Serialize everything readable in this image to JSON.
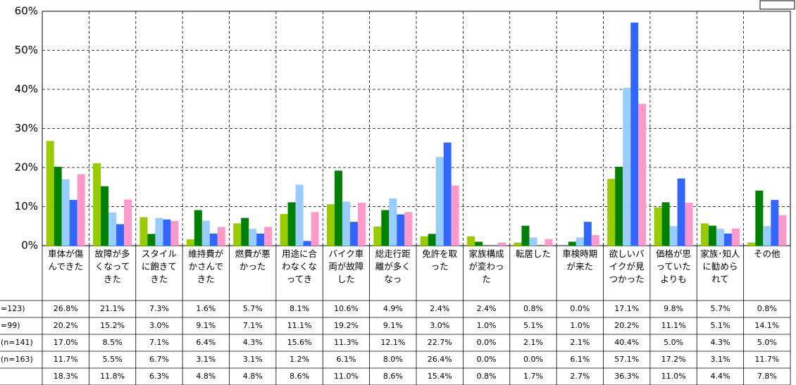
{
  "chart_data": {
    "type": "bar",
    "categories": [
      "車体が傷んできた",
      "故障が多くなってきた",
      "スタイルに飽きてきた",
      "維持費がかさんできた",
      "燃費が悪かった",
      "用途に合わなくなってき",
      "バイク車両が故障した",
      "総走行距離が多くなっ",
      "免許を取った",
      "家族構成が変わった",
      "転居した",
      "車検時期が来た",
      "欲しいバイクが見つかった",
      "価格が思っていたよりも",
      "家族･知人に勧められて",
      "その他"
    ],
    "ylim": [
      0,
      60
    ],
    "yticks": [
      {
        "value": 0,
        "label": "0%"
      },
      {
        "value": 10,
        "label": "10%"
      },
      {
        "value": 20,
        "label": "20%"
      },
      {
        "value": 30,
        "label": "30%"
      },
      {
        "value": 40,
        "label": "40%"
      },
      {
        "value": 50,
        "label": "50%"
      },
      {
        "value": 60,
        "label": "60%"
      }
    ],
    "grid": true,
    "series": [
      {
        "name": "=123)",
        "color": "#99cc00",
        "values": [
          26.8,
          21.1,
          7.3,
          1.6,
          5.7,
          8.1,
          10.6,
          4.9,
          2.4,
          2.4,
          0.8,
          0.0,
          17.1,
          9.8,
          5.7,
          0.8
        ],
        "value_labels": [
          "26.8%",
          "21.1%",
          "7.3%",
          "1.6%",
          "5.7%",
          "8.1%",
          "10.6%",
          "4.9%",
          "2.4%",
          "2.4%",
          "0.8%",
          "0.0%",
          "17.1%",
          "9.8%",
          "5.7%",
          "0.8%"
        ]
      },
      {
        "name": "=99)",
        "color": "#008000",
        "values": [
          20.2,
          15.2,
          3.0,
          9.1,
          7.1,
          11.1,
          19.2,
          9.1,
          3.0,
          1.0,
          5.1,
          1.0,
          20.2,
          11.1,
          5.1,
          14.1
        ],
        "value_labels": [
          "20.2%",
          "15.2%",
          "3.0%",
          "9.1%",
          "7.1%",
          "11.1%",
          "19.2%",
          "9.1%",
          "3.0%",
          "1.0%",
          "5.1%",
          "1.0%",
          "20.2%",
          "11.1%",
          "5.1%",
          "14.1%"
        ]
      },
      {
        "name": "(n=141)",
        "color": "#99ccff",
        "values": [
          17.0,
          8.5,
          7.1,
          6.4,
          4.3,
          15.6,
          11.3,
          12.1,
          22.7,
          0.0,
          2.1,
          2.1,
          40.4,
          5.0,
          4.3,
          5.0
        ],
        "value_labels": [
          "17.0%",
          "8.5%",
          "7.1%",
          "6.4%",
          "4.3%",
          "15.6%",
          "11.3%",
          "12.1%",
          "22.7%",
          "0.0%",
          "2.1%",
          "2.1%",
          "40.4%",
          "5.0%",
          "4.3%",
          "5.0%"
        ]
      },
      {
        "name": "(n=163)",
        "color": "#3366ff",
        "values": [
          11.7,
          5.5,
          6.7,
          3.1,
          3.1,
          1.2,
          6.1,
          8.0,
          26.4,
          0.0,
          0.0,
          6.1,
          57.1,
          17.2,
          3.1,
          11.7
        ],
        "value_labels": [
          "11.7%",
          "5.5%",
          "6.7%",
          "3.1%",
          "3.1%",
          "1.2%",
          "6.1%",
          "8.0%",
          "26.4%",
          "0.0%",
          "0.0%",
          "6.1%",
          "57.1%",
          "17.2%",
          "3.1%",
          "11.7%"
        ]
      },
      {
        "color": "#ff99cc",
        "values": [
          18.3,
          11.8,
          6.3,
          4.8,
          4.8,
          8.6,
          11.0,
          8.6,
          15.4,
          0.8,
          1.7,
          2.7,
          36.3,
          11.0,
          4.4,
          7.8
        ],
        "value_labels": [
          "18.3%",
          "11.8%",
          "6.3%",
          "4.8%",
          "4.8%",
          "8.6%",
          "11.0%",
          "8.6%",
          "15.4%",
          "0.8%",
          "1.7%",
          "2.7%",
          "36.3%",
          "11.0%",
          "4.4%",
          "7.8%"
        ]
      }
    ]
  }
}
